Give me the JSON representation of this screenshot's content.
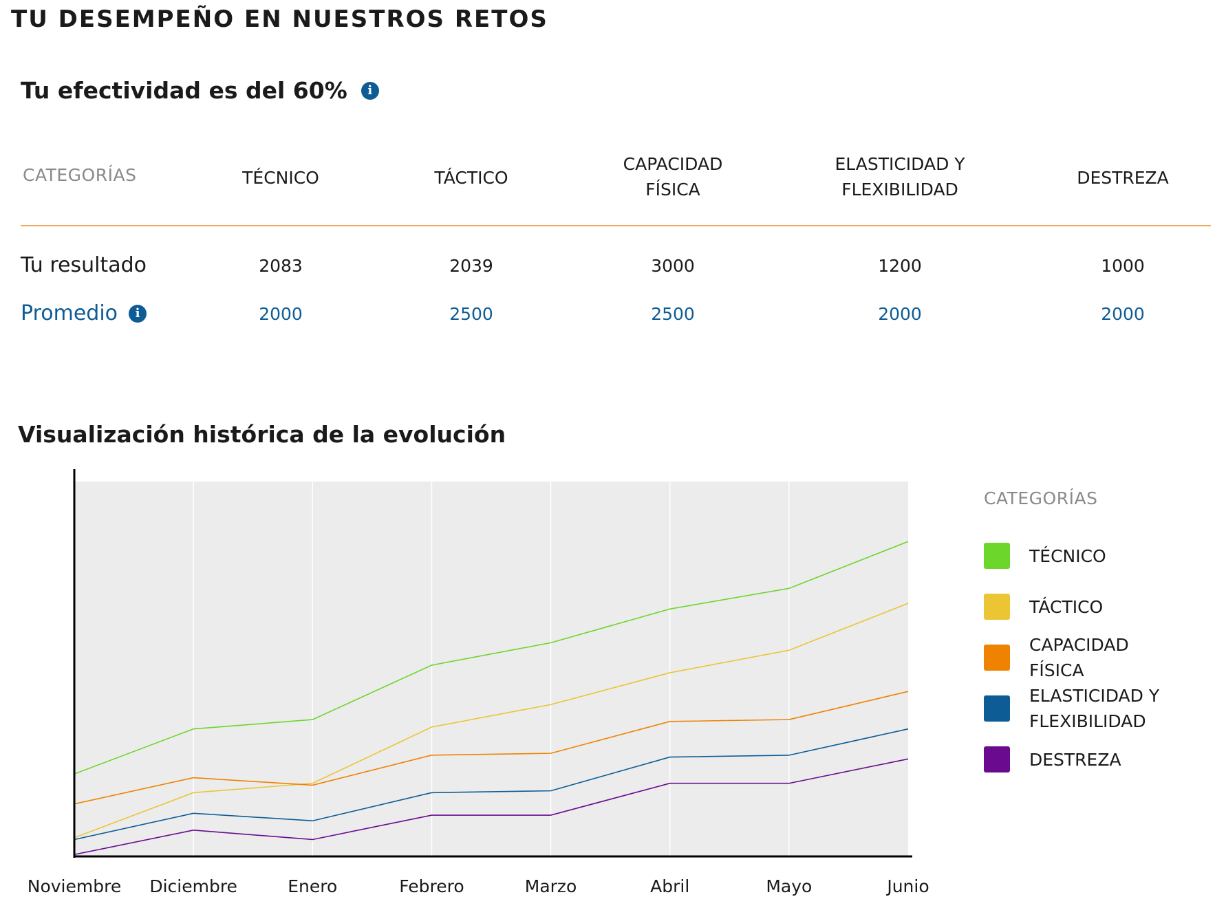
{
  "header": {
    "title": "TU DESEMPEÑO EN NUESTROS RETOS",
    "effectiveness": "Tu efectividad es del 60%",
    "info_glyph": "i"
  },
  "table": {
    "header_label": "CATEGORÍAS",
    "columns": [
      "TÉCNICO",
      "TÁCTICO",
      "CAPACIDAD\nFÍSICA",
      "ELASTICIDAD Y\nFLEXIBILIDAD",
      "DESTREZA"
    ],
    "rows": [
      {
        "label": "Tu resultado",
        "values": [
          "2083",
          "2039",
          "3000",
          "1200",
          "1000"
        ]
      },
      {
        "label": "Promedio",
        "values": [
          "2000",
          "2500",
          "2500",
          "2000",
          "2000"
        ]
      }
    ],
    "divider_color": "#f0a45a",
    "average_color": "#0d5c96"
  },
  "history": {
    "title": "Visualización histórica de la evolución"
  },
  "legend": {
    "title": "CATEGORÍAS",
    "items": [
      {
        "label": "TÉCNICO",
        "color": "#6dd62a"
      },
      {
        "label": "TÁCTICO",
        "color": "#ebc534"
      },
      {
        "label": "CAPACIDAD\nFÍSICA",
        "color": "#ef8200"
      },
      {
        "label": "ELASTICIDAD Y\nFLEXIBILIDAD",
        "color": "#0d5c96"
      },
      {
        "label": "DESTREZA",
        "color": "#6a0a8f"
      }
    ]
  },
  "chart_data": {
    "type": "line",
    "categories": [
      "Noviembre",
      "Diciembre",
      "Enero",
      "Febrero",
      "Marzo",
      "Abril",
      "Mayo",
      "Junio"
    ],
    "ylim": [
      0,
      100
    ],
    "grid": true,
    "background": "#ececec",
    "series": [
      {
        "name": "TÉCNICO",
        "color": "#6dd62a",
        "values": [
          22,
          34,
          36.5,
          51,
          57,
          66,
          71.5,
          84
        ]
      },
      {
        "name": "TÁCTICO",
        "color": "#ebc534",
        "values": [
          5,
          17,
          19.5,
          34.5,
          40.5,
          49,
          55,
          67.5
        ]
      },
      {
        "name": "CAPACIDAD FÍSICA",
        "color": "#ef8200",
        "values": [
          14,
          21,
          19,
          27,
          27.5,
          36,
          36.5,
          44
        ]
      },
      {
        "name": "ELASTICIDAD Y FLEXIBILIDAD",
        "color": "#0d5c96",
        "values": [
          4.5,
          11.5,
          9.5,
          17,
          17.5,
          26.5,
          27,
          34
        ]
      },
      {
        "name": "DESTREZA",
        "color": "#6a0a8f",
        "values": [
          0.5,
          7,
          4.5,
          11,
          11,
          19.5,
          19.5,
          26
        ]
      }
    ]
  }
}
